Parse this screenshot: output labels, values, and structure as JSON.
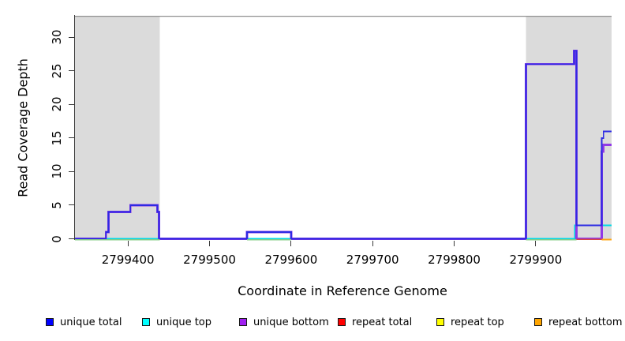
{
  "figure": {
    "background": "#ffffff",
    "axis_color": "#3a3a3a",
    "border_line_color": "#8f8f8f"
  },
  "chart_data": {
    "type": "line",
    "style": "step-coverage",
    "title": "",
    "xlabel": "Coordinate in Reference Genome",
    "ylabel": "Read Coverage Depth",
    "x_range": [
      2799335,
      2799993
    ],
    "y_range": [
      0,
      33.2
    ],
    "x_ticks": [
      2799400,
      2799500,
      2799600,
      2799700,
      2799800,
      2799900
    ],
    "y_ticks": [
      0,
      5,
      10,
      15,
      20,
      25,
      30
    ],
    "grid": false,
    "legend_position": "bottom",
    "shaded_regions": {
      "color": "#dbdbdb",
      "meaning": "repeat regions",
      "x_pairs": [
        [
          2799335,
          2799439
        ],
        [
          2799888,
          2799993
        ]
      ]
    },
    "series": [
      {
        "name": "unique total",
        "legend_color": "#0000FF",
        "draw_color": "#2d2be3",
        "line_width": 1.8,
        "z": 3,
        "points": [
          [
            2799335,
            0
          ],
          [
            2799373,
            0
          ],
          [
            2799373,
            1
          ],
          [
            2799376,
            1
          ],
          [
            2799376,
            4
          ],
          [
            2799403,
            4
          ],
          [
            2799403,
            5
          ],
          [
            2799436,
            5
          ],
          [
            2799436,
            4
          ],
          [
            2799438,
            4
          ],
          [
            2799438,
            0
          ],
          [
            2799546,
            0
          ],
          [
            2799546,
            1
          ],
          [
            2799600,
            1
          ],
          [
            2799600,
            0
          ],
          [
            2799888,
            0
          ],
          [
            2799888,
            26
          ],
          [
            2799947,
            26
          ],
          [
            2799947,
            28
          ],
          [
            2799950,
            28
          ],
          [
            2799950,
            2
          ],
          [
            2799981,
            2
          ],
          [
            2799981,
            15
          ],
          [
            2799983,
            15
          ],
          [
            2799983,
            16
          ],
          [
            2799993,
            16
          ]
        ]
      },
      {
        "name": "unique top",
        "legend_color": "#00FFFF",
        "draw_color": "#00d8e6",
        "line_width": 1.6,
        "z": 1,
        "points": [
          [
            2799335,
            0
          ],
          [
            2799948,
            0
          ],
          [
            2799948,
            2
          ],
          [
            2799993,
            2
          ]
        ]
      },
      {
        "name": "unique bottom",
        "legend_color": "#A020F0",
        "draw_color": "#9039e6",
        "line_width": 2.8,
        "z": 2,
        "points": [
          [
            2799335,
            0
          ],
          [
            2799373,
            0
          ],
          [
            2799373,
            1
          ],
          [
            2799376,
            1
          ],
          [
            2799376,
            4
          ],
          [
            2799403,
            4
          ],
          [
            2799403,
            5
          ],
          [
            2799436,
            5
          ],
          [
            2799436,
            4
          ],
          [
            2799438,
            4
          ],
          [
            2799438,
            0
          ],
          [
            2799546,
            0
          ],
          [
            2799546,
            1
          ],
          [
            2799600,
            1
          ],
          [
            2799600,
            0
          ],
          [
            2799888,
            0
          ],
          [
            2799888,
            26
          ],
          [
            2799947,
            26
          ],
          [
            2799947,
            28
          ],
          [
            2799950,
            28
          ],
          [
            2799950,
            0
          ],
          [
            2799981,
            0
          ],
          [
            2799981,
            13
          ],
          [
            2799983,
            13
          ],
          [
            2799983,
            14
          ],
          [
            2799993,
            14
          ]
        ]
      },
      {
        "name": "repeat total",
        "legend_color": "#FF0000",
        "draw_color": "#d84545",
        "line_width": 1.6,
        "z": 4,
        "points": [
          [
            2799335,
            0
          ],
          [
            2799993,
            0
          ]
        ],
        "visible_zero_segments": [
          [
            2799950,
            2799981
          ]
        ]
      },
      {
        "name": "repeat top",
        "legend_color": "#FFFF00",
        "draw_color": "#87cc87",
        "line_width": 1.6,
        "z": 5,
        "points": [
          [
            2799335,
            0
          ],
          [
            2799993,
            0
          ]
        ],
        "visible_zero_segments": [
          [
            2799335,
            2799439
          ],
          [
            2799546,
            2799600
          ],
          [
            2799888,
            2799950
          ]
        ]
      },
      {
        "name": "repeat bottom",
        "legend_color": "#FFA500",
        "draw_color": "#ffa510",
        "line_width": 1.8,
        "z": 6,
        "points": [
          [
            2799335,
            0
          ],
          [
            2799993,
            0
          ]
        ],
        "visible_zero_segments": [
          [
            2799981,
            2799993
          ]
        ]
      }
    ]
  }
}
